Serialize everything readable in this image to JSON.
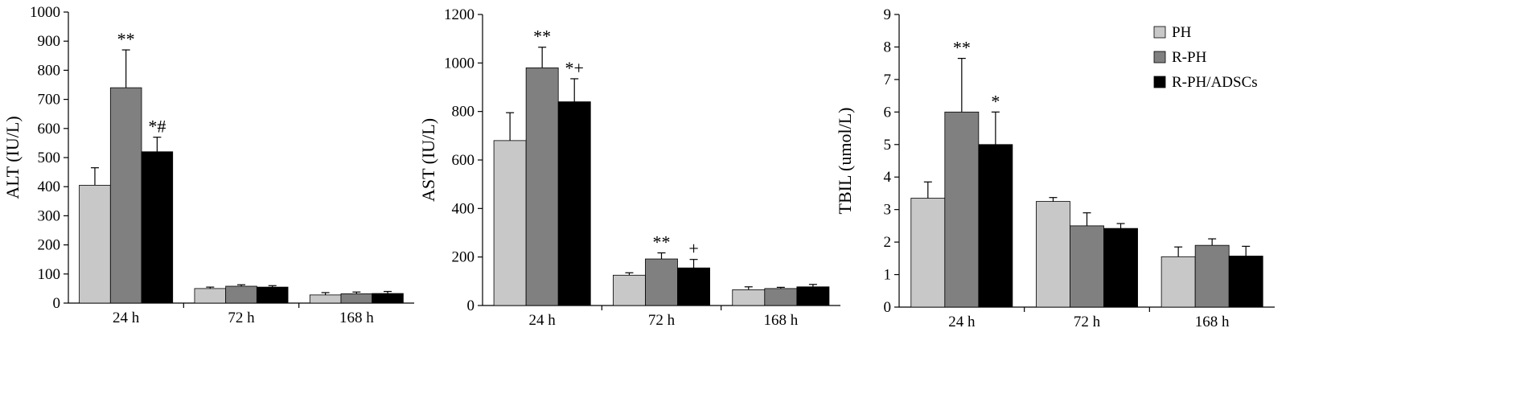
{
  "chart_data": [
    {
      "type": "bar",
      "y_label": "ALT (IU/L)",
      "categories": [
        "24 h",
        "72 h",
        "168 h"
      ],
      "ylim": [
        0,
        1000
      ],
      "yticks": [
        0,
        100,
        200,
        300,
        400,
        500,
        600,
        700,
        800,
        900,
        1000
      ],
      "series": [
        {
          "color": "#c8c8c8",
          "values": [
            405,
            50,
            28
          ],
          "errors": [
            60,
            5,
            8
          ],
          "annotations": [
            null,
            null,
            null
          ]
        },
        {
          "color": "#808080",
          "values": [
            740,
            58,
            32
          ],
          "errors": [
            130,
            5,
            6
          ],
          "annotations": [
            "**",
            null,
            null
          ]
        },
        {
          "color": "#000000",
          "values": [
            520,
            55,
            33
          ],
          "errors": [
            50,
            5,
            7
          ],
          "annotations": [
            "*#",
            null,
            null
          ]
        }
      ]
    },
    {
      "type": "bar",
      "y_label": "AST (IU/L)",
      "categories": [
        "24 h",
        "72 h",
        "168 h"
      ],
      "ylim": [
        0,
        1200
      ],
      "yticks": [
        0,
        200,
        400,
        600,
        800,
        1000,
        1200
      ],
      "series": [
        {
          "color": "#c8c8c8",
          "values": [
            680,
            125,
            65
          ],
          "errors": [
            115,
            10,
            12
          ],
          "annotations": [
            null,
            null,
            null
          ]
        },
        {
          "color": "#808080",
          "values": [
            980,
            192,
            70
          ],
          "errors": [
            85,
            25,
            5
          ],
          "annotations": [
            "**",
            "**",
            null
          ]
        },
        {
          "color": "#000000",
          "values": [
            840,
            155,
            77
          ],
          "errors": [
            95,
            35,
            10
          ],
          "annotations": [
            "*+",
            "+",
            null
          ]
        }
      ]
    },
    {
      "type": "bar",
      "y_label": "TBIL (umol/L)",
      "categories": [
        "24 h",
        "72 h",
        "168 h"
      ],
      "ylim": [
        0,
        9
      ],
      "yticks": [
        0,
        1,
        2,
        3,
        4,
        5,
        6,
        7,
        8,
        9
      ],
      "legend": "upper right",
      "series": [
        {
          "name": "PH",
          "color": "#c8c8c8",
          "values": [
            3.35,
            3.25,
            1.55
          ],
          "errors": [
            0.5,
            0.12,
            0.3
          ],
          "annotations": [
            null,
            null,
            null
          ]
        },
        {
          "name": "R-PH",
          "color": "#808080",
          "values": [
            6.0,
            2.5,
            1.9
          ],
          "errors": [
            1.65,
            0.4,
            0.2
          ],
          "annotations": [
            "**",
            null,
            null
          ]
        },
        {
          "name": "R-PH/ADSCs",
          "color": "#000000",
          "values": [
            5.0,
            2.42,
            1.57
          ],
          "errors": [
            1.0,
            0.15,
            0.3
          ],
          "annotations": [
            "*",
            null,
            null
          ]
        }
      ]
    }
  ]
}
